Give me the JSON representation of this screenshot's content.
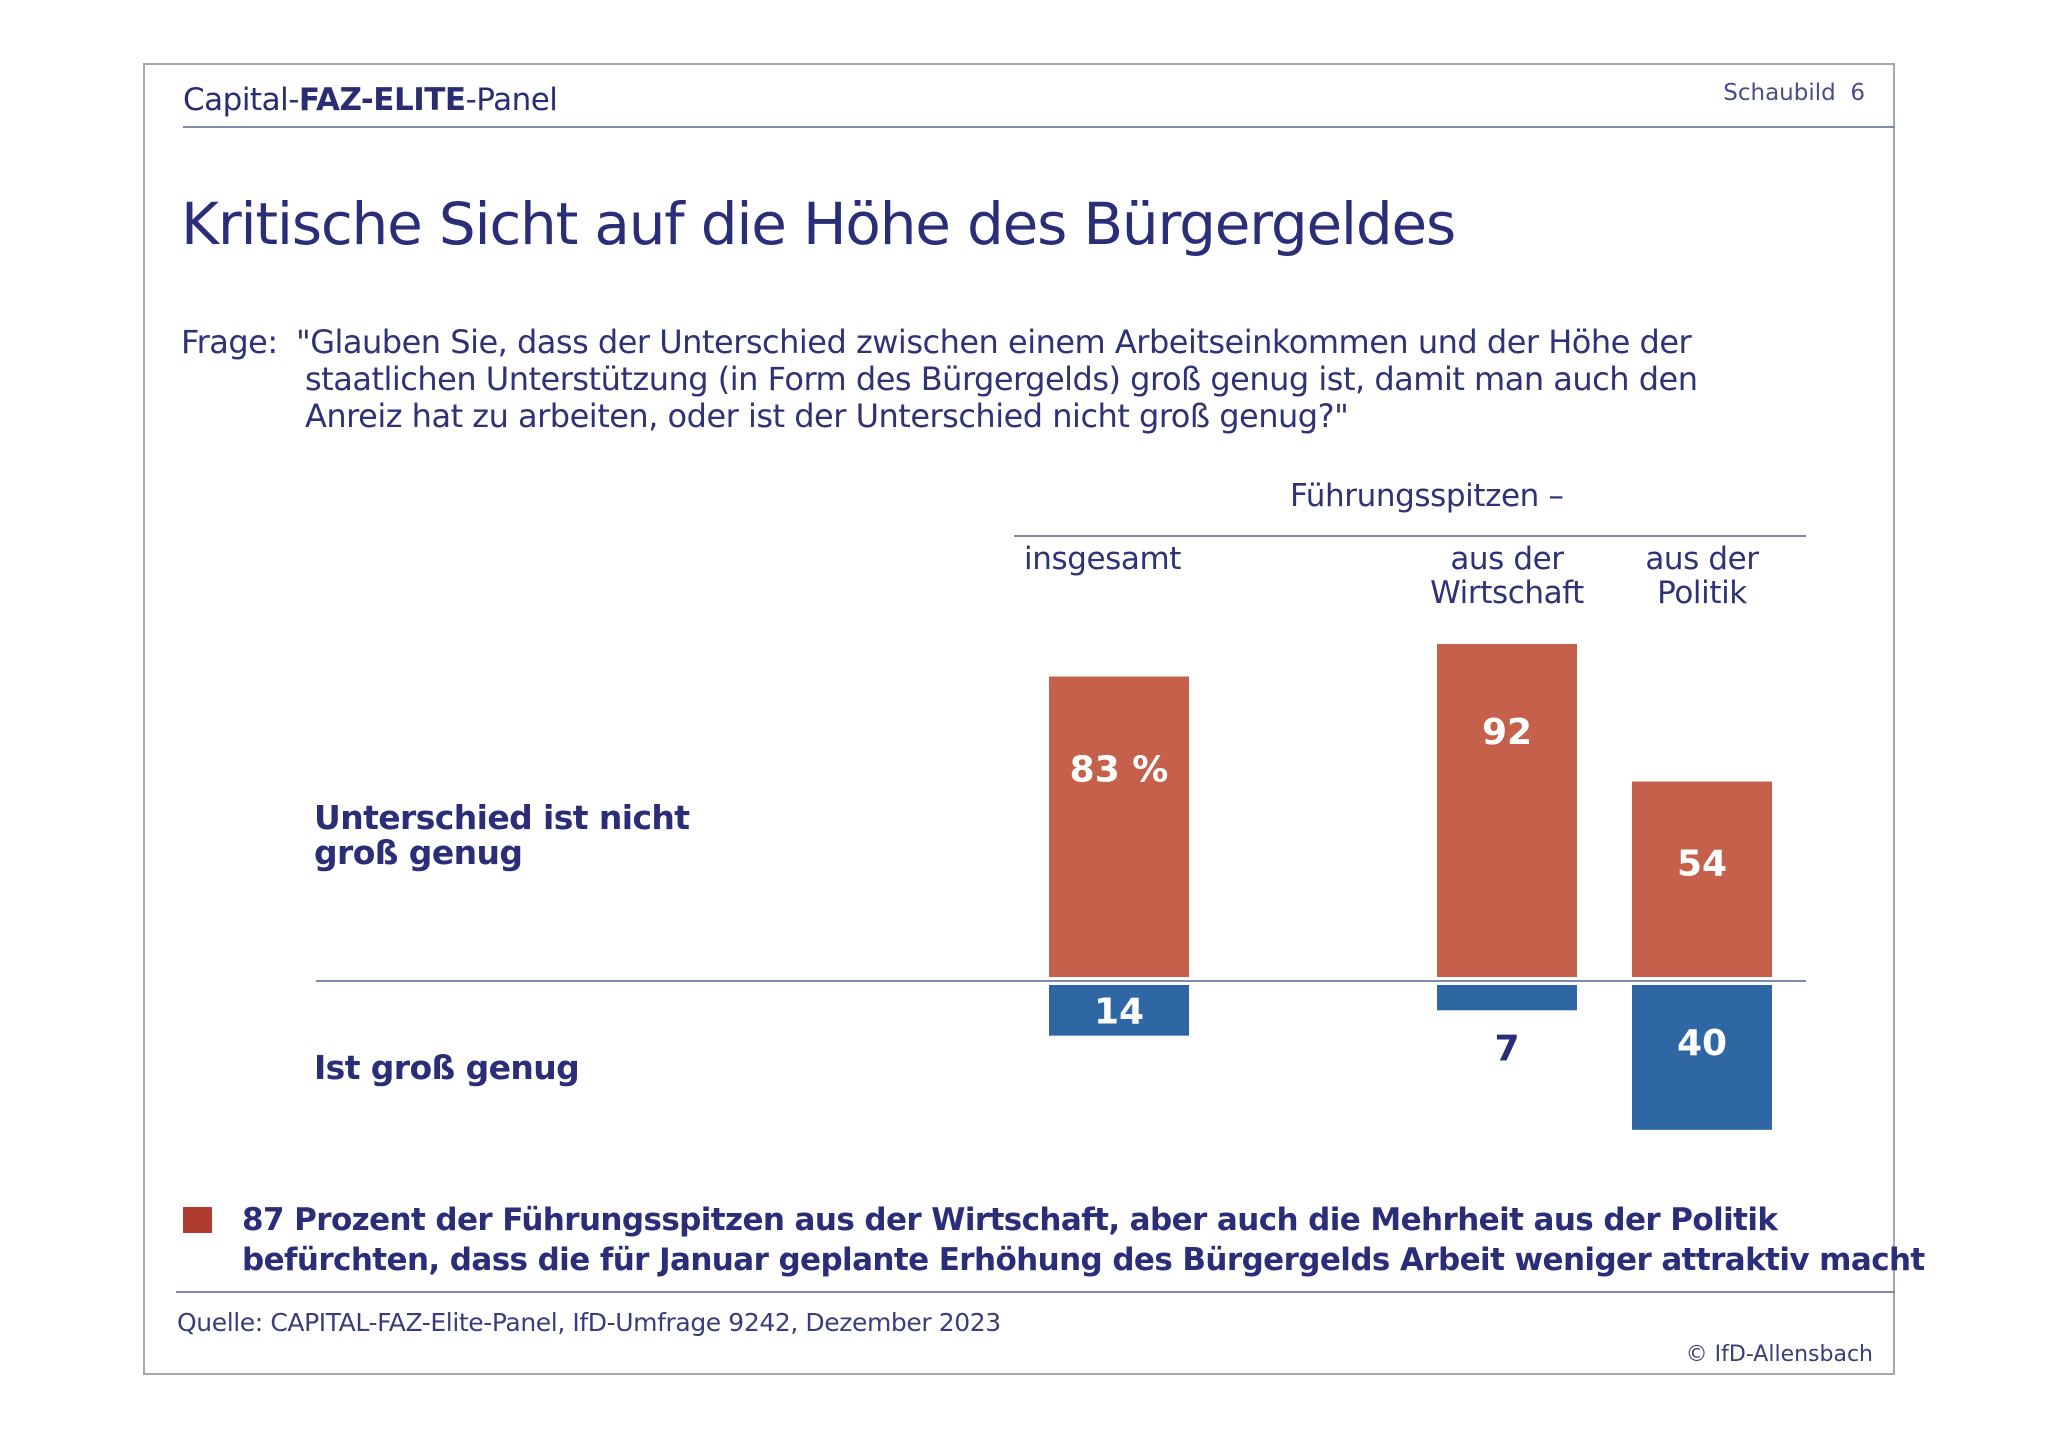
{
  "header": {
    "panel_parts": [
      {
        "text": "Capital-",
        "bold": false
      },
      {
        "text": "FAZ-ELITE",
        "bold": true
      },
      {
        "text": "-Panel",
        "bold": false
      }
    ],
    "panel_prefix": "Capital-",
    "panel_bold": "FAZ-ELITE",
    "panel_suffix": "-Panel",
    "schaubild": "Schaubild  6"
  },
  "title": "Kritische Sicht auf die Höhe des Bürgergeldes",
  "question": {
    "label": "Frage:",
    "lines": [
      "\"Glauben Sie, dass der Unterschied zwischen einem Arbeitseinkommen und der Höhe der",
      "staatlichen Unterstützung (in Form des Bürgergelds) groß genug ist, damit man auch den",
      "Anreiz hat zu arbeiten, oder ist der Unterschied nicht groß genug?\""
    ]
  },
  "legend_note": {
    "color": "#B03C30",
    "lines": [
      "87 Prozent der Führungsspitzen aus der Wirtschaft, aber auch die Mehrheit aus der Politik",
      "befürchten, dass die für Januar geplante Erhöhung des Bürgergelds Arbeit weniger attraktiv macht"
    ]
  },
  "footer": {
    "source": "Quelle: CAPITAL-FAZ-Elite-Panel, IfD-Umfrage 9242, Dezember 2023",
    "copyright": "© IfD-Allensbach"
  },
  "chart_data": {
    "type": "bar",
    "title": "Kritische Sicht auf die Höhe des Bürgergeldes",
    "unit": "%",
    "group_header": "Führungsspitzen –",
    "categories": [
      "insgesamt",
      "aus der Wirtschaft",
      "aus der Politik"
    ],
    "category_label_lines": [
      [
        "insgesamt"
      ],
      [
        "aus der",
        "Wirtschaft"
      ],
      [
        "aus der",
        "Politik"
      ]
    ],
    "row_labels": {
      "above": [
        "Unterschied ist nicht",
        "groß genug"
      ],
      "below": [
        "Ist groß genug"
      ]
    },
    "series": [
      {
        "name": "Unterschied ist nicht groß genug",
        "direction": "up",
        "color": "#C5604A",
        "values": [
          83,
          92,
          54
        ],
        "labels": [
          "83 %",
          "92",
          "54"
        ]
      },
      {
        "name": "Ist groß genug",
        "direction": "down",
        "color": "#2E67A3",
        "values": [
          14,
          7,
          40
        ],
        "labels": [
          "14",
          "7",
          "40"
        ]
      }
    ],
    "ylim": [
      -40,
      92
    ],
    "grid": false,
    "legend": "none",
    "xlabel": "",
    "ylabel": ""
  },
  "colors": {
    "text": "#2A2D78",
    "rule": "#7D89AD",
    "red": "#C5604A",
    "blue": "#2E67A3",
    "legend_square": "#B03C30"
  }
}
